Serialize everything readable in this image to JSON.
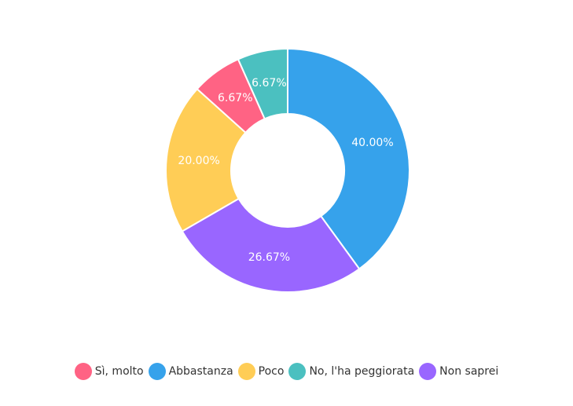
{
  "chart_data": {
    "type": "pie",
    "donut": true,
    "categories": [
      "Sì, molto",
      "Abbastanza",
      "Poco",
      "No, l'ha peggiorata",
      "Non saprei"
    ],
    "values": [
      6.67,
      40.0,
      20.0,
      6.67,
      26.67
    ],
    "value_labels": [
      "6.67%",
      "40.00%",
      "20.00%",
      "6.67%",
      "26.67%"
    ],
    "colors": [
      "#ff6384",
      "#36a2eb",
      "#ffcd56",
      "#4bc0c0",
      "#9966ff"
    ],
    "draw_order": [
      "Abbastanza",
      "Non saprei",
      "Poco",
      "Sì, molto",
      "No, l'ha peggiorata"
    ],
    "legend_position": "bottom"
  },
  "legend": {
    "items": [
      {
        "label": "Sì, molto",
        "color": "#ff6384"
      },
      {
        "label": "Abbastanza",
        "color": "#36a2eb"
      },
      {
        "label": "Poco",
        "color": "#ffcd56"
      },
      {
        "label": "No, l'ha peggiorata",
        "color": "#4bc0c0"
      },
      {
        "label": "Non saprei",
        "color": "#9966ff"
      }
    ]
  }
}
